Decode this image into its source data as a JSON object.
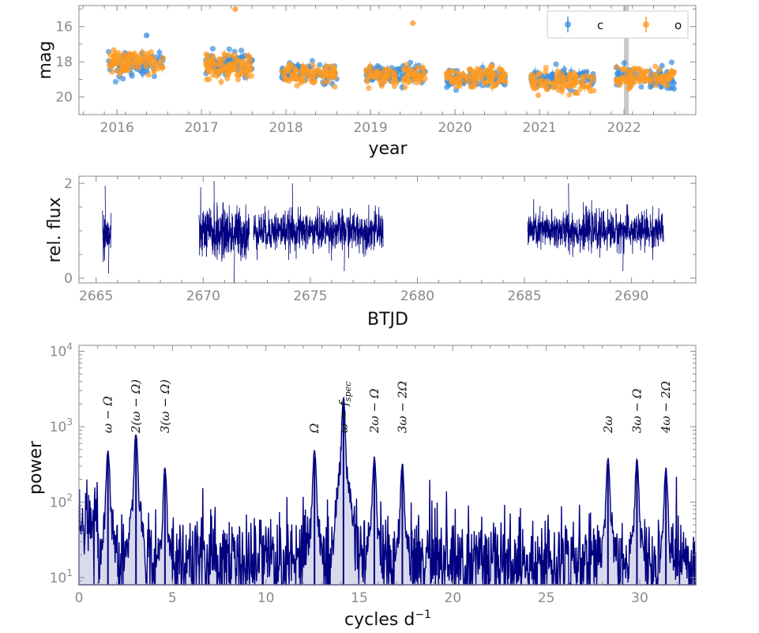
{
  "chart_data": [
    {
      "type": "scatter",
      "title": "",
      "xlabel": "year",
      "ylabel": "mag",
      "xlim": [
        2015.55,
        2022.85
      ],
      "ylim": [
        21.0,
        14.8
      ],
      "y_inverted": true,
      "x_ticks": [
        2016,
        2017,
        2018,
        2019,
        2020,
        2021,
        2022
      ],
      "x_tick_labels": [
        "2016",
        "2017",
        "2018",
        "2019",
        "2020",
        "2021",
        "2022"
      ],
      "y_ticks": [
        16,
        18,
        20
      ],
      "y_tick_labels": [
        "16",
        "18",
        "20"
      ],
      "legend": {
        "placement": "top-right",
        "entries": [
          "c",
          "o"
        ]
      },
      "series": [
        {
          "name": "c",
          "color": "#3a8ee0",
          "seasons": [
            {
              "start": 2015.9,
              "end": 2016.55,
              "mean": 18.1,
              "spread": 0.6
            },
            {
              "start": 2017.05,
              "end": 2017.6,
              "mean": 18.1,
              "spread": 0.6
            },
            {
              "start": 2017.95,
              "end": 2018.6,
              "mean": 18.6,
              "spread": 0.5
            },
            {
              "start": 2018.95,
              "end": 2019.65,
              "mean": 18.7,
              "spread": 0.5
            },
            {
              "start": 2019.9,
              "end": 2020.6,
              "mean": 18.9,
              "spread": 0.5
            },
            {
              "start": 2020.9,
              "end": 2021.65,
              "mean": 19.0,
              "spread": 0.5
            },
            {
              "start": 2021.9,
              "end": 2022.6,
              "mean": 18.8,
              "spread": 0.6
            }
          ]
        },
        {
          "name": "o",
          "color": "#ff9a1f",
          "seasons": [
            {
              "start": 2015.9,
              "end": 2016.55,
              "mean": 18.0,
              "spread": 0.6
            },
            {
              "start": 2017.05,
              "end": 2017.6,
              "mean": 18.3,
              "spread": 0.7
            },
            {
              "start": 2017.95,
              "end": 2018.6,
              "mean": 18.7,
              "spread": 0.5
            },
            {
              "start": 2018.95,
              "end": 2019.65,
              "mean": 18.8,
              "spread": 0.5
            },
            {
              "start": 2019.9,
              "end": 2020.6,
              "mean": 18.9,
              "spread": 0.5
            },
            {
              "start": 2020.9,
              "end": 2021.65,
              "mean": 19.1,
              "spread": 0.5
            },
            {
              "start": 2021.9,
              "end": 2022.6,
              "mean": 18.9,
              "spread": 0.5
            }
          ]
        }
      ],
      "outliers": [
        {
          "series": "o",
          "x": 2017.4,
          "y": 15.0
        },
        {
          "series": "o",
          "x": 2019.5,
          "y": 15.8
        },
        {
          "series": "c",
          "x": 2016.35,
          "y": 16.5
        }
      ],
      "highlight_band": {
        "start": 2022.0,
        "end": 2022.05,
        "color": "#c8c8c8"
      }
    },
    {
      "type": "line",
      "title": "",
      "xlabel": "BTJD",
      "ylabel": "rel. flux",
      "xlim": [
        2664.2,
        2693.0
      ],
      "ylim": [
        -0.1,
        2.15
      ],
      "x_ticks": [
        2665,
        2670,
        2675,
        2680,
        2685,
        2690
      ],
      "x_tick_labels": [
        "2665",
        "2670",
        "2675",
        "2680",
        "2685",
        "2690"
      ],
      "y_ticks": [
        0,
        2
      ],
      "y_tick_labels": [
        "0",
        "2"
      ],
      "color": "#000080",
      "segments": [
        {
          "start": 2665.3,
          "end": 2665.7,
          "mean": 0.9,
          "amplitude": 0.55,
          "max": 1.95,
          "min": 0.1
        },
        {
          "start": 2669.8,
          "end": 2672.15,
          "mean": 0.95,
          "amplitude": 0.6,
          "max": 2.05,
          "min": -0.1
        },
        {
          "start": 2672.35,
          "end": 2678.4,
          "mean": 1.0,
          "amplitude": 0.45,
          "max": 2.0,
          "min": 0.15
        },
        {
          "start": 2685.15,
          "end": 2691.5,
          "mean": 1.0,
          "amplitude": 0.45,
          "max": 2.0,
          "min": 0.15
        }
      ]
    },
    {
      "type": "line",
      "title": "",
      "xlabel": "cycles d",
      "xlabel_superscript": "−1",
      "ylabel": "power",
      "xlim": [
        0,
        33
      ],
      "ylim": [
        8,
        12000
      ],
      "y_scale": "log",
      "x_ticks": [
        0,
        5,
        10,
        15,
        20,
        25,
        30
      ],
      "x_tick_labels": [
        "0",
        "5",
        "10",
        "15",
        "20",
        "25",
        "30"
      ],
      "y_ticks": [
        10,
        100,
        1000,
        10000
      ],
      "y_tick_labels": [
        {
          "base": "10",
          "exp": "1"
        },
        {
          "base": "10",
          "exp": "2"
        },
        {
          "base": "10",
          "exp": "3"
        },
        {
          "base": "10",
          "exp": "4"
        }
      ],
      "color": "#000080",
      "peaks": [
        {
          "x": 1.55,
          "power": 420,
          "label": "ω − Ω"
        },
        {
          "x": 3.05,
          "power": 700,
          "label": "2(ω − Ω)"
        },
        {
          "x": 4.6,
          "power": 240,
          "label": "3(ω − Ω)"
        },
        {
          "x": 12.6,
          "power": 400,
          "label": "Ω"
        },
        {
          "x": 14.15,
          "power": 2050,
          "label": "ω = f",
          "label_sub": "spec"
        },
        {
          "x": 15.8,
          "power": 330,
          "label": "2ω − Ω"
        },
        {
          "x": 17.3,
          "power": 270,
          "label": "3ω − 2Ω"
        },
        {
          "x": 28.3,
          "power": 320,
          "label": "2ω"
        },
        {
          "x": 29.85,
          "power": 310,
          "label": "3ω − Ω"
        },
        {
          "x": 31.4,
          "power": 230,
          "label": "4ω − 2Ω"
        }
      ],
      "noise_floor": {
        "low_freq": 60,
        "mid_freq": 18,
        "high_freq": 15
      }
    }
  ]
}
